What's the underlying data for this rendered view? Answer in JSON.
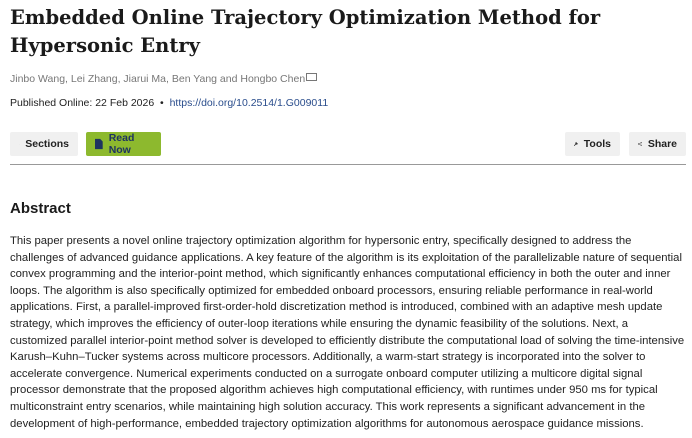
{
  "article": {
    "title": "Embedded Online Trajectory Optimization Method for Hypersonic Entry",
    "authors": "Jinbo Wang, Lei Zhang, Jiarui Ma, Ben Yang and Hongbo Chen",
    "published_label": "Published Online: 22 Feb 2026",
    "separator": "•",
    "doi": "https://doi.org/10.2514/1.G009011"
  },
  "toolbar": {
    "sections_label": "Sections",
    "read_now_label": "Read Now",
    "tools_label": "Tools",
    "share_label": "Share"
  },
  "colors": {
    "read_now_bg": "#8db92e",
    "link": "#2a4d8c"
  },
  "abstract": {
    "heading": "Abstract",
    "text": "This paper presents a novel online trajectory optimization algorithm for hypersonic entry, specifically designed to address the challenges of advanced guidance applications. A key feature of the algorithm is its exploitation of the parallelizable nature of sequential convex programming and the interior-point method, which significantly enhances computational efficiency in both the outer and inner loops. The algorithm is also specifically optimized for embedded onboard processors, ensuring reliable performance in real-world applications. First, a parallel-improved first-order-hold discretization method is introduced, combined with an adaptive mesh update strategy, which improves the efficiency of outer-loop iterations while ensuring the dynamic feasibility of the solutions. Next, a customized parallel interior-point method solver is developed to efficiently distribute the computational load of solving the time-intensive Karush–Kuhn–Tucker systems across multicore processors. Additionally, a warm-start strategy is incorporated into the solver to accelerate convergence. Numerical experiments conducted on a surrogate onboard computer utilizing a multicore digital signal processor demonstrate that the proposed algorithm achieves high computational efficiency, with runtimes under 950 ms for typical multiconstraint entry scenarios, while maintaining high solution accuracy. This work represents a significant advancement in the development of high-performance, embedded trajectory optimization algorithms for autonomous aerospace guidance missions."
  }
}
